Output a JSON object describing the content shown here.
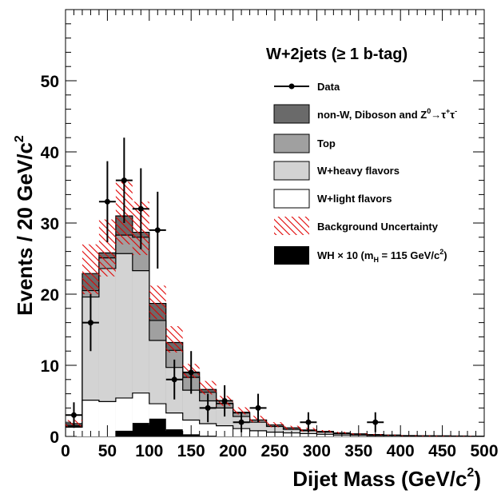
{
  "chart_data": {
    "type": "histogram",
    "title": "W+2jets (≥ 1 b-tag)",
    "xlabel": "Dijet Mass (GeV/c",
    "xlabel_sup": "2",
    "xlabel_close": ")",
    "ylabel": "Events / 20 GeV/c",
    "ylabel_sup": "2",
    "xlim": [
      0,
      500
    ],
    "ylim": [
      0,
      60
    ],
    "bin_width": 20,
    "x_ticks": [
      0,
      50,
      100,
      150,
      200,
      250,
      300,
      350,
      400,
      450,
      500
    ],
    "y_ticks": [
      0,
      10,
      20,
      30,
      40,
      50
    ],
    "bin_edges": [
      0,
      20,
      40,
      60,
      80,
      100,
      120,
      140,
      160,
      180,
      200,
      220,
      240,
      260,
      280,
      300,
      320,
      340,
      360,
      380,
      400,
      420,
      440,
      460,
      480,
      500
    ],
    "stack": [
      {
        "name": "W+light flavors",
        "color": "#ffffff",
        "values": [
          1.3,
          5.1,
          4.9,
          5.4,
          6.1,
          4.6,
          3.3,
          2.3,
          1.8,
          1.5,
          1.1,
          0.8,
          0.6,
          0.5,
          0.4,
          0.3,
          0.2,
          0.15,
          0.1,
          0.1,
          0.05,
          0.05,
          0.05,
          0.03,
          0.03
        ]
      },
      {
        "name": "W+heavy flavors",
        "color": "#d3d3d3",
        "values": [
          1.4,
          19.6,
          23.6,
          25.7,
          23.3,
          13.5,
          9.7,
          6.5,
          5.0,
          4.0,
          2.8,
          2.0,
          1.4,
          1.0,
          0.8,
          0.6,
          0.4,
          0.3,
          0.2,
          0.15,
          0.1,
          0.08,
          0.06,
          0.05,
          0.04
        ]
      },
      {
        "name": "Top",
        "color": "#a0a0a0",
        "values": [
          1.5,
          20.5,
          25.1,
          28.3,
          28.0,
          16.3,
          12.1,
          8.3,
          6.2,
          4.6,
          3.3,
          2.3,
          1.6,
          1.2,
          0.9,
          0.7,
          0.5,
          0.35,
          0.25,
          0.18,
          0.12,
          0.1,
          0.07,
          0.06,
          0.05
        ]
      },
      {
        "name": "non-W, Diboson and Z⁰→τ⁺τ⁻",
        "color": "#6a6a6a",
        "values": [
          1.8,
          22.9,
          25.8,
          31.0,
          28.7,
          18.7,
          13.2,
          9.0,
          6.6,
          4.7,
          3.4,
          2.3,
          1.6,
          1.2,
          0.9,
          0.7,
          0.5,
          0.35,
          0.25,
          0.18,
          0.12,
          0.1,
          0.07,
          0.06,
          0.05
        ]
      }
    ],
    "uncertainty": {
      "name": "Background Uncertainty",
      "color": "#e00000",
      "low": [
        1.4,
        20.0,
        22.5,
        27.0,
        25.5,
        16.5,
        11.8,
        8.2,
        5.9,
        4.3,
        3.1,
        2.0,
        1.3,
        1.0,
        0.7,
        0.55,
        0.4,
        0.25,
        0.18,
        0.12,
        0.08,
        0.06,
        0.04,
        0.03,
        0.03
      ],
      "high": [
        2.3,
        27.0,
        30.5,
        35.8,
        33.0,
        21.2,
        15.5,
        10.2,
        7.8,
        5.7,
        4.1,
        2.9,
        2.0,
        1.5,
        1.2,
        0.9,
        0.65,
        0.45,
        0.33,
        0.24,
        0.16,
        0.13,
        0.09,
        0.07,
        0.06
      ]
    },
    "signal": {
      "name": "WH × 10",
      "legend_suffix": "(m",
      "legend_sub": "H",
      "legend_mid": " = 115 GeV/c",
      "legend_sup": "2",
      "legend_end": ")",
      "color": "#000000",
      "values": [
        0.0,
        0.0,
        0.0,
        0.8,
        1.9,
        2.5,
        1.0,
        0.3,
        0.1,
        0.0,
        0.0,
        0.0,
        0.0,
        0.0,
        0.0,
        0.0,
        0.0,
        0.0,
        0.0,
        0.0,
        0.0,
        0.0,
        0.0,
        0.0,
        0.0
      ]
    },
    "data": {
      "name": "Data",
      "points": [
        {
          "x": 10,
          "y": 3,
          "yerr": 1.8
        },
        {
          "x": 30,
          "y": 16,
          "yerr": 4.0
        },
        {
          "x": 50,
          "y": 33,
          "yerr": 5.7
        },
        {
          "x": 70,
          "y": 36,
          "yerr": 6.0
        },
        {
          "x": 90,
          "y": 32,
          "yerr": 5.7
        },
        {
          "x": 110,
          "y": 29,
          "yerr": 5.4
        },
        {
          "x": 130,
          "y": 8,
          "yerr": 2.8
        },
        {
          "x": 150,
          "y": 9,
          "yerr": 3.0
        },
        {
          "x": 170,
          "y": 4,
          "yerr": 2.0
        },
        {
          "x": 190,
          "y": 5,
          "yerr": 2.2
        },
        {
          "x": 210,
          "y": 2,
          "yerr": 1.4
        },
        {
          "x": 230,
          "y": 4,
          "yerr": 2.0
        },
        {
          "x": 290,
          "y": 2,
          "yerr": 1.4
        },
        {
          "x": 370,
          "y": 2,
          "yerr": 1.4
        }
      ]
    },
    "legend": {
      "position": "top-right",
      "entries": [
        {
          "key": "data",
          "label": "Data"
        },
        {
          "key": "nonw",
          "label": "non-W, Diboson and Z",
          "sup1": "0",
          "arrow": "→",
          "tau": "τ",
          "sup2": "+",
          "tau2": "τ",
          "sup3": "-"
        },
        {
          "key": "top",
          "label": "Top"
        },
        {
          "key": "heavy",
          "label": "W+heavy flavors"
        },
        {
          "key": "light",
          "label": "W+light flavors"
        },
        {
          "key": "unc",
          "label": "Background Uncertainty"
        },
        {
          "key": "wh",
          "label": "WH × 10 (m",
          "sub": "H",
          "mid": " = 115 GeV/c",
          "sup": "2",
          "end": ")"
        }
      ]
    }
  }
}
